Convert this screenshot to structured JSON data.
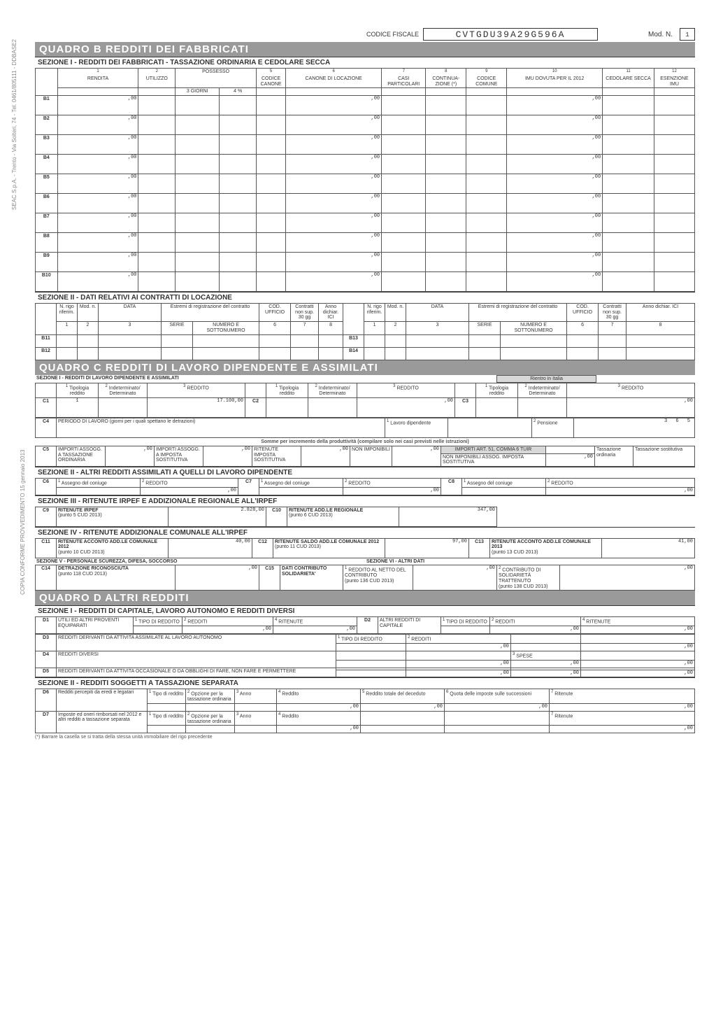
{
  "header": {
    "codice_fiscale_label": "CODICE FISCALE",
    "codice_fiscale": "CVTGDU39A29G596A",
    "mod_n_label": "Mod. N.",
    "mod_n": "1"
  },
  "side": {
    "print": "SEAC S.p.A. - Trento - Via Solteri, 74 - Tel. 0461/805111 - DDBASE2",
    "copy": "COPIA CONFORME PROVVEDIMENTO 15 gennaio 2013"
  },
  "quadroB": {
    "banner": "QUADRO   B   REDDITI DEI FABBRICATI",
    "sez1": "SEZIONE I - REDDITI DEI FABBRICATI - TASSAZIONE ORDINARIA E CEDOLARE SECCA",
    "cols": {
      "rendita": "RENDITA",
      "utilizzo": "UTILIZZO",
      "possesso": "POSSESSO",
      "giorni": "3 GIORNI",
      "perc": "4    %",
      "codcanone": "CODICE CANONE",
      "canone": "CANONE DI LOCAZIONE",
      "casi": "CASI PARTICOLARI",
      "cont": "CONTINUA-ZIONE (*)",
      "codcom": "CODICE COMUNE",
      "imu": "IMU DOVUTA PER IL 2012",
      "ced": "CEDOLARE SECCA",
      "esenz": "ESENZIONE IMU",
      "c1": "1",
      "c2": "2",
      "c5": "5",
      "c6": "6",
      "c7": "7",
      "c8": "8",
      "c9": "9",
      "c10": "10",
      "c11": "11",
      "c12": "12"
    },
    "rows": [
      "B1",
      "B2",
      "B3",
      "B4",
      "B5",
      "B6",
      "B7",
      "B8",
      "B9",
      "B10"
    ],
    "zero": ",00",
    "sez2": "SEZIONE II  -  DATI RELATIVI AI CONTRATTI DI LOCAZIONE",
    "sez2cols": {
      "nrigo": "N. rigo riferim.",
      "mod": "Mod. n.",
      "data": "DATA",
      "estremi": "Estremi di registrazione del contratto",
      "serie": "SERIE",
      "numero": "NUMERO E SOTTONUMERO",
      "codufficio": "COD. UFFICIO",
      "contratti": "Contratti non sup. 30 gg",
      "anno": "Anno dichiar. ICI"
    },
    "sez2rows": {
      "b11": "B11",
      "b12": "B12",
      "b13": "B13",
      "b14": "B14"
    }
  },
  "quadroC": {
    "banner": "QUADRO   C   REDDITI DI LAVORO DIPENDENTE E ASSIMILATI",
    "sez1": "SEZIONE I  -  REDDITI DI LAVORO DIPENDENTE E ASSIMILATI",
    "rientro": "Rientro in Italia",
    "cols": {
      "tip": "Tipologia reddito",
      "ind": "Indeterminato/ Determinato",
      "red": "REDDITO"
    },
    "c1": {
      "label": "C1",
      "tip": "1",
      "red": "17.100,00"
    },
    "c2": {
      "label": "C2",
      "red": ",00"
    },
    "c3": {
      "label": "C3",
      "red": ",00"
    },
    "c4": {
      "label": "C4",
      "text": "PERIODO DI LAVORO (giorni per i quali spettano le detrazioni)",
      "lavoro": "Lavoro dipendente",
      "pens": "Pensione",
      "pens_val": "3 6 5"
    },
    "somme": "Somme per incremento della produttività (compilare solo nei casi previsti nelle istruzioni)",
    "c5": {
      "label": "C5",
      "l1": "IMPORTI ASSOGG. A TASSAZIONE ORDINARIA",
      "l2": "IMPORTI ASSOGG. A IMPOSTA SOSTITUTIVA",
      "l3": "RITENUTE IMPOSTA SOSTITUTIVA",
      "l4": "NON IMPONIBILI",
      "l5": "IMPORTI ART. 51, COMMA 6 TUIR",
      "l6": "NON IMPONIBILI ASSOG. IMPOSTA SOSTITUTIVA",
      "l7": "Tassazione ordinaria",
      "l8": "Tassazione sostitutiva"
    },
    "sez2": "SEZIONE II  -  ALTRI REDDITI ASSIMILATI A QUELLI DI LAVORO DIPENDENTE",
    "c6": {
      "label": "C6",
      "ass": "Assegno del coniuge",
      "red": "REDDITO"
    },
    "c7": {
      "label": "C7"
    },
    "c8": {
      "label": "C8"
    },
    "sez3": "SEZIONE III  -  RITENUTE IRPEF E ADDIZIONALE REGIONALE ALL'IRPEF",
    "c9": {
      "label": "C9",
      "t": "RITENUTE IRPEF",
      "s": "(punto 5 CUD 2013)",
      "v": "2.828,00"
    },
    "c10": {
      "label": "C10",
      "t": "RITENUTE ADD.LE REGIONALE",
      "s": "(punto 6 CUD 2013)",
      "v": "347,00"
    },
    "sez4": "SEZIONE IV  -  RITENUTE ADDIZIONALE COMUNALE ALL'IRPEF",
    "c11": {
      "label": "C11",
      "t": "RITENUTE ACCONTO ADD.LE COMUNALE 2012",
      "s": "(punto 10 CUD 2013)",
      "v": "40,00"
    },
    "c12": {
      "label": "C12",
      "t": "RITENUTE  SALDO ADD.LE COMUNALE 2012",
      "s": "(punto 11 CUD 2013)",
      "v": "97,00"
    },
    "c13": {
      "label": "C13",
      "t": "RITENUTE ACCONTO ADD.LE COMUNALE 2013",
      "s": "(punto 13 CUD 2013)",
      "v": "41,00"
    },
    "sez5": "SEZIONE V - PERSONALE SCUREZZA, DIFESA, SOCCORSO",
    "sez6": "SEZIONE VI - ALTRI DATI",
    "c14": {
      "label": "C14",
      "t": "DETRAZIONE RICONOSCIUTA",
      "s": "(punto 118 CUD 2013)"
    },
    "c15": {
      "label": "C15",
      "t": "DATI CONTRIBUTO SOLIDARIETA'",
      "r1": "REDDITO AL NETTO DEL CONTRIBUTO",
      "r1s": "(punto 136 CUD 2013)",
      "r2": "CONTRIBUTO DI SOLIDARIETÀ TRATTENUTO",
      "r2s": "(punto 138 CUD 2013)"
    }
  },
  "quadroD": {
    "banner": "QUADRO   D   ALTRI REDDITI",
    "sez1": "SEZIONE I - REDDITI DI CAPITALE, LAVORO AUTONOMO E REDDITI DIVERSI",
    "tipored": "TIPO DI REDDITO",
    "redditi": "REDDITI",
    "ritenute": "RITENUTE",
    "spese": "SPESE",
    "d1": {
      "label": "D1",
      "t": "UTILI ED ALTRI PROVENTI EQUIPARATI"
    },
    "d2": {
      "label": "D2",
      "t": "ALTRI REDDITI DI CAPITALE"
    },
    "d3": {
      "label": "D3",
      "t": "REDDITI DERIVANTI DA ATTIVITA ASSIMILATE AL LAVORO AUTONOMO"
    },
    "d4": {
      "label": "D4",
      "t": "REDDITI DIVERSI"
    },
    "d5": {
      "label": "D5",
      "t": "REDDITI DERIVANTI DA ATTIVITA OCCASIONALE O DA OBBLIGHI DI FARE, NON FARE E PERMETTERE"
    },
    "sez2": "SEZIONE II  -  REDDITI SOGGETTI A TASSAZIONE SEPARATA",
    "d6": {
      "label": "D6",
      "t": "Redditi percepiti da eredi e legatari",
      "c1": "Tipo di reddito",
      "c2": "Opzione per la tassazione ordinaria",
      "c3": "Anno",
      "c4": "Reddito",
      "c5": "Reddito totale del deceduto",
      "c6": "Quota delle imposte sulle successioni",
      "c7": "Ritenute"
    },
    "d7": {
      "label": "D7",
      "t": "Imposte ed oneri rimborsati nel 2012 e altri redditi a tassazione separata"
    }
  },
  "footnote": "(*) Barrare la casella se si tratta della stessa unità immobiliare del rigo precedente"
}
